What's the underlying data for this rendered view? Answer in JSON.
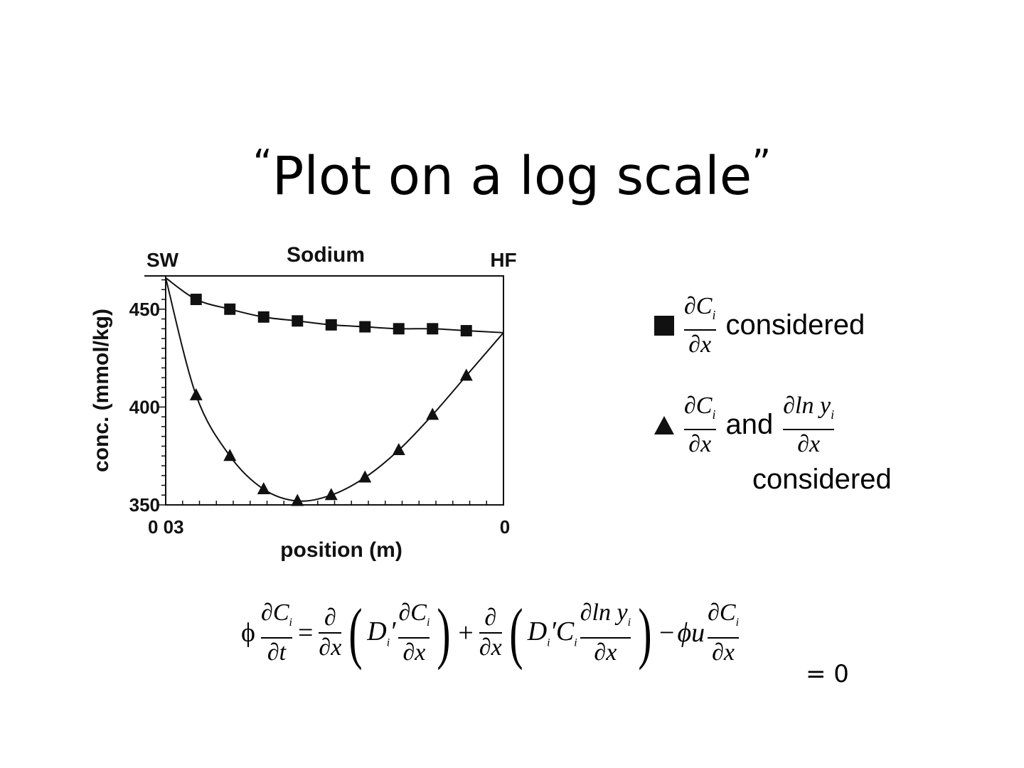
{
  "slide": {
    "title_open_quote": "“",
    "title": "Plot on a log scale",
    "title_close_quote": "”"
  },
  "chart_data": {
    "type": "line",
    "title": "Sodium",
    "left_end_label": "SW",
    "right_end_label": "HF",
    "xlabel": "position (m)",
    "ylabel": "conc. (mmol/kg)",
    "x_tick_labels": [
      "0 03",
      "0"
    ],
    "xlim": [
      0.03,
      0
    ],
    "ylim": [
      350,
      467
    ],
    "y_ticks": [
      350,
      400,
      450
    ],
    "y_tick_labels": [
      "350",
      "400",
      "450"
    ],
    "grid": false,
    "series": [
      {
        "marker": "square",
        "x": [
          0.03,
          0.0273,
          0.0243,
          0.0213,
          0.0183,
          0.0153,
          0.0123,
          0.0093,
          0.0063,
          0.0033,
          0
        ],
        "y": [
          466,
          455,
          450,
          446,
          444,
          442,
          441,
          440,
          440,
          439,
          438
        ]
      },
      {
        "marker": "triangle",
        "x": [
          0.03,
          0.0273,
          0.0243,
          0.0213,
          0.0183,
          0.0153,
          0.0123,
          0.0093,
          0.0063,
          0.0033,
          0
        ],
        "y": [
          466,
          406,
          375,
          358,
          352,
          355,
          364,
          378,
          396,
          416,
          438
        ]
      }
    ]
  },
  "legend": {
    "item1": {
      "marker": "square",
      "frac_num": "∂C",
      "frac_sub": "i",
      "frac_den": "∂x",
      "text": "considered"
    },
    "item2": {
      "marker": "triangle",
      "frac_num": "∂C",
      "frac_sub": "i",
      "frac_den": "∂x",
      "and": "and",
      "frac2_num": "∂ln y",
      "frac2_sub": "i",
      "frac2_den": "∂x",
      "text": "considered"
    }
  },
  "equation": {
    "phi": "ϕ",
    "t1_num": "∂C",
    "t1_den": "∂t",
    "eq": "=",
    "d_num": "∂",
    "d_den": "∂x",
    "D": "D",
    "prime": "′",
    "t2_num": "∂C",
    "t2_den": "∂x",
    "plus": "+",
    "C": "C",
    "t3_num": "∂ln y",
    "t3_den": "∂x",
    "minus": "−",
    "phi_u": "ϕu",
    "t4_num": "∂C",
    "t4_den": "∂x",
    "sub_i": "i",
    "equals_zero": "= 0"
  }
}
